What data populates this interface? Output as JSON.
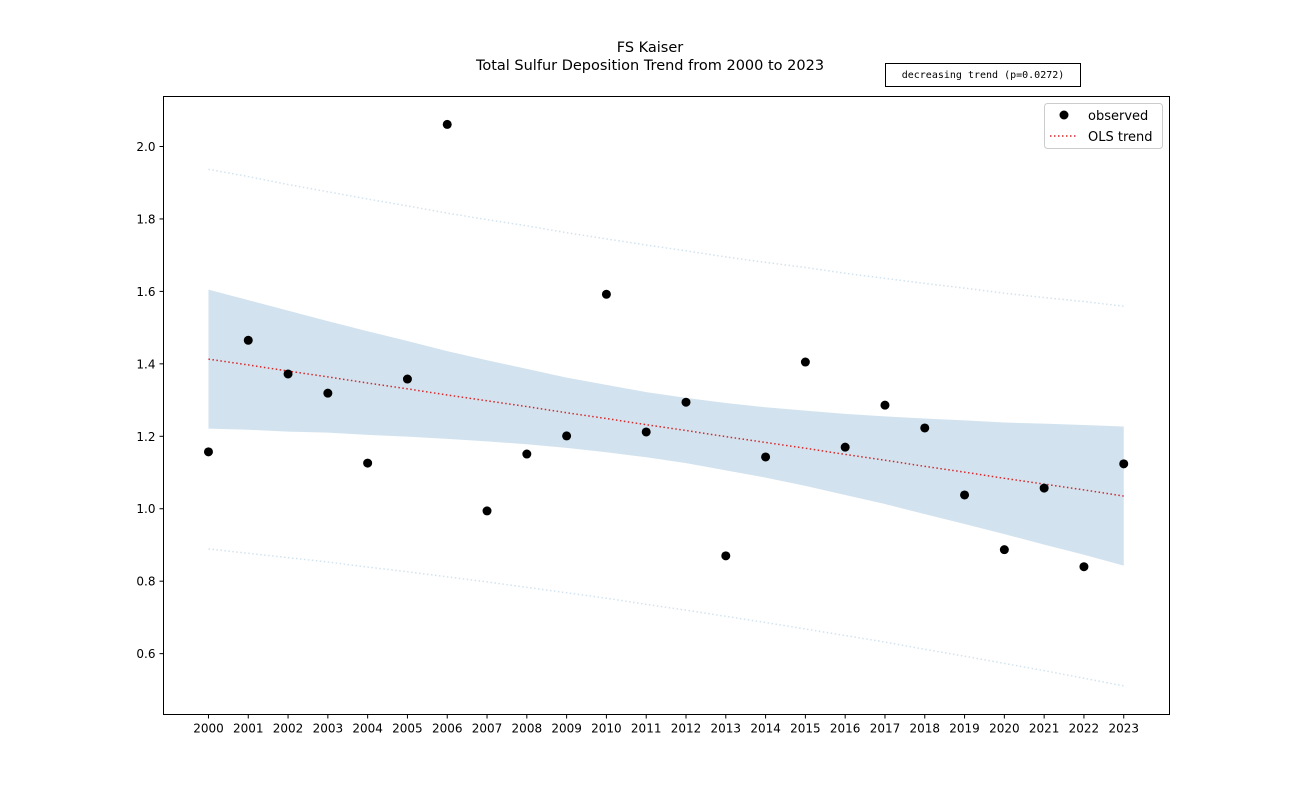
{
  "chart_data": {
    "type": "scatter",
    "title": "FS Kaiser",
    "subtitle": "Total Sulfur Deposition Trend from 2000 to 2023",
    "annotation": "decreasing trend (p=0.0272)",
    "xlabel": "",
    "ylabel": "",
    "xlim": [
      1998.87,
      2024.15
    ],
    "ylim": [
      0.432,
      2.138
    ],
    "yticks": [
      0.6,
      0.8,
      1.0,
      1.2,
      1.4,
      1.6,
      1.8,
      2.0
    ],
    "ytick_labels": [
      "0.6",
      "0.8",
      "1.0",
      "1.2",
      "1.4",
      "1.6",
      "1.8",
      "2.0"
    ],
    "x": [
      2000,
      2001,
      2002,
      2003,
      2004,
      2005,
      2006,
      2007,
      2008,
      2009,
      2010,
      2011,
      2012,
      2013,
      2014,
      2015,
      2016,
      2017,
      2018,
      2019,
      2020,
      2021,
      2022,
      2023
    ],
    "xtick_labels": [
      "2000",
      "2001",
      "2002",
      "2003",
      "2004",
      "2005",
      "2006",
      "2007",
      "2008",
      "2009",
      "2010",
      "2011",
      "2012",
      "2013",
      "2014",
      "2015",
      "2016",
      "2017",
      "2018",
      "2019",
      "2020",
      "2021",
      "2022",
      "2023"
    ],
    "observed": [
      1.157,
      1.465,
      1.372,
      1.319,
      1.126,
      1.358,
      2.061,
      0.994,
      1.151,
      1.201,
      1.592,
      1.212,
      1.294,
      0.87,
      1.143,
      1.405,
      1.17,
      1.286,
      1.223,
      1.038,
      0.887,
      1.057,
      0.84,
      1.124
    ],
    "trend": [
      1.413,
      1.397,
      1.38,
      1.364,
      1.347,
      1.331,
      1.314,
      1.298,
      1.282,
      1.265,
      1.249,
      1.232,
      1.216,
      1.199,
      1.183,
      1.167,
      1.15,
      1.134,
      1.117,
      1.101,
      1.084,
      1.068,
      1.052,
      1.035
    ],
    "ci_halfwidth": [
      0.192,
      0.179,
      0.167,
      0.154,
      0.143,
      0.132,
      0.121,
      0.112,
      0.104,
      0.097,
      0.093,
      0.09,
      0.09,
      0.093,
      0.097,
      0.104,
      0.112,
      0.121,
      0.132,
      0.143,
      0.154,
      0.167,
      0.179,
      0.192
    ],
    "pi_halfwidth": [
      0.524,
      0.52,
      0.515,
      0.511,
      0.508,
      0.505,
      0.502,
      0.5,
      0.499,
      0.497,
      0.496,
      0.496,
      0.496,
      0.496,
      0.497,
      0.499,
      0.5,
      0.502,
      0.505,
      0.508,
      0.511,
      0.515,
      0.52,
      0.524
    ],
    "legend": {
      "placement": "top-right",
      "entries": [
        "observed",
        "OLS trend"
      ]
    },
    "grid": false,
    "colors": {
      "observed": "#000000",
      "trend": "#d62728",
      "ci": "#d2e3ef",
      "pi": "#d2e3ef"
    }
  }
}
